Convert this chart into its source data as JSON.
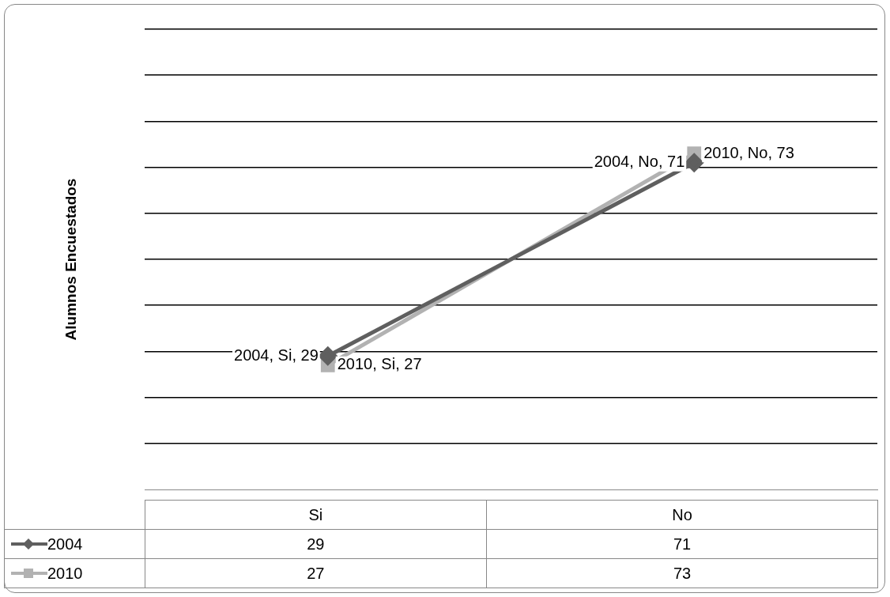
{
  "chart_data": {
    "type": "line",
    "ylabel": "Alumnos Encuestados",
    "categories": [
      "Si",
      "No"
    ],
    "series": [
      {
        "name": "2004",
        "color": "#5f5f5f",
        "marker": "diamond",
        "values": [
          29,
          71
        ]
      },
      {
        "name": "2010",
        "color": "#b2b2b2",
        "marker": "square",
        "values": [
          27,
          73
        ]
      }
    ],
    "annotations": [
      "2004, Si, 29",
      "2010, Si, 27",
      "2004, No, 71",
      "2010, No, 73"
    ],
    "ylim": [
      0,
      100
    ],
    "yticks": [
      {
        "value": 10,
        "label": null
      },
      {
        "value": 20,
        "label": null
      },
      {
        "value": 30,
        "label": null
      },
      {
        "value": 40,
        "label": null
      },
      {
        "value": 50,
        "label": null
      },
      {
        "value": 60,
        "label": null
      },
      {
        "value": 70,
        "label": null
      },
      {
        "value": 80,
        "label": null
      },
      {
        "value": 90,
        "label": null
      },
      {
        "value": 100,
        "label": null
      }
    ],
    "grid": "y",
    "tick_labels": "x",
    "legend": "bottom",
    "data_labels": true
  }
}
